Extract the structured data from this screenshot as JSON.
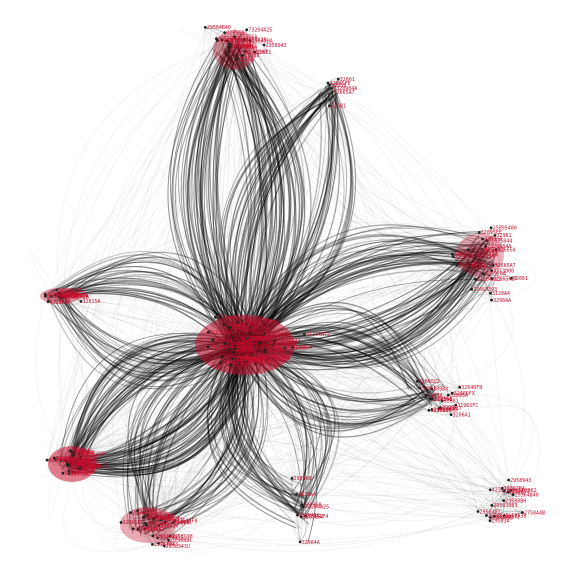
{
  "colors": {
    "edge": "#000000",
    "label": "#c8102e",
    "node": "#222222",
    "background": "#ffffff"
  },
  "labels": [
    "32895FE",
    "7320984A",
    "32665393",
    "31635844",
    "3213000",
    "32665A2F",
    "32905028",
    "32615A",
    "25895480",
    "32665A",
    "3285A4",
    "32895A",
    "3296A47",
    "32985C5",
    "31629495",
    "32665FX",
    "3196SFC",
    "32665C2",
    "30984",
    "32096A",
    "3206A1",
    "3198A",
    "32640F8",
    "32681",
    "32665A8",
    "32908",
    "32961",
    "32952",
    "42301DCH",
    "2958G98",
    "29563062",
    "29581AS",
    "29583A",
    "29580BH",
    "2958A3B",
    "29564B40",
    "2958943",
    "29563BA",
    "2958943U",
    "29563083",
    "29564B1",
    "2758A4B",
    "34104A72",
    "7320A1C",
    "73204A25",
    "32984A",
    "2958A8",
    "3128A4",
    "32096B",
    "3253E6A",
    "32651F4",
    "32665A7",
    "32981",
    "32958",
    "32661"
  ]
}
